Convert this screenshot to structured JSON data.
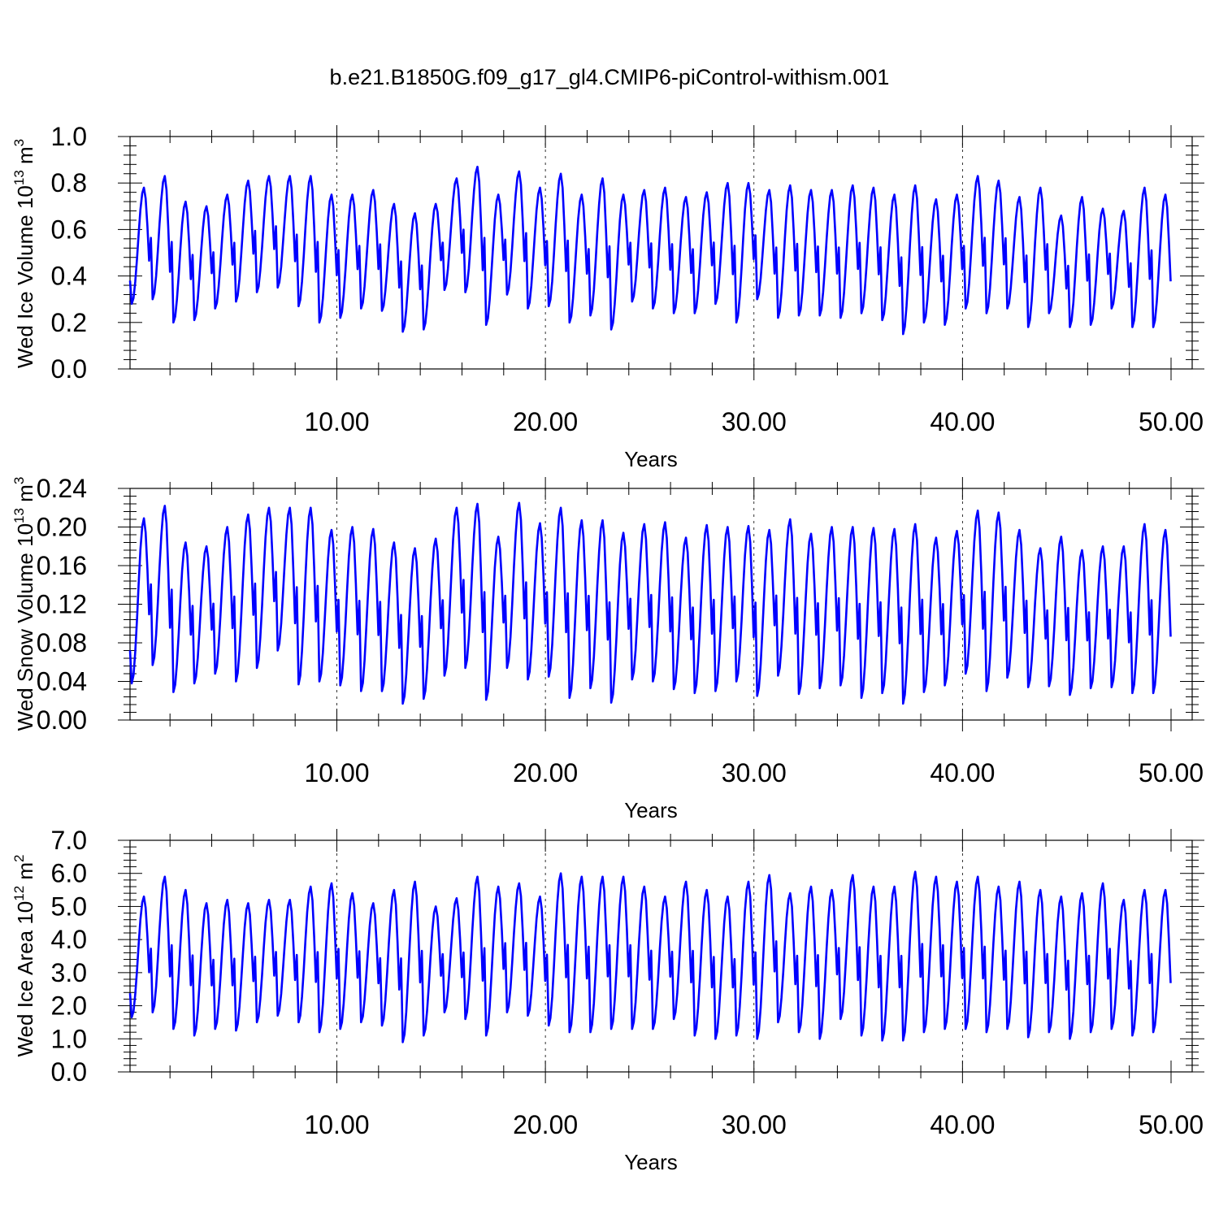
{
  "figure": {
    "title": "b.e21.B1850G.f09_g17_gl4.CMIP6-piControl-withism.001"
  },
  "chart_data": [
    {
      "type": "line",
      "ylabel": "Wed Ice Volume 10",
      "ylabel_exp": "13",
      "ylabel_unit": " m",
      "ylabel_unit_exp": "3",
      "xlabel": "Years",
      "xlim": [
        0.083,
        50
      ],
      "ylim": [
        0,
        1.0
      ],
      "x_ticks": [
        "10.00",
        "20.00",
        "30.00",
        "40.00",
        "50.00"
      ],
      "y_ticks": [
        "0.0",
        "0.2",
        "0.4",
        "0.6",
        "0.8",
        "1.0"
      ],
      "line_color": "#0000ff",
      "x_start": 0.083,
      "x_step": 0.0833,
      "annual_min": [
        0.28,
        0.3,
        0.2,
        0.21,
        0.26,
        0.29,
        0.33,
        0.35,
        0.27,
        0.2,
        0.22,
        0.26,
        0.25,
        0.16,
        0.17,
        0.34,
        0.33,
        0.19,
        0.32,
        0.26,
        0.27,
        0.2,
        0.23,
        0.17,
        0.29,
        0.26,
        0.24,
        0.24,
        0.28,
        0.2,
        0.3,
        0.22,
        0.23,
        0.23,
        0.22,
        0.24,
        0.21,
        0.15,
        0.2,
        0.19,
        0.26,
        0.24,
        0.26,
        0.18,
        0.24,
        0.18,
        0.19,
        0.26,
        0.18,
        0.18
      ],
      "annual_max": [
        0.78,
        0.83,
        0.72,
        0.7,
        0.75,
        0.81,
        0.83,
        0.83,
        0.83,
        0.75,
        0.75,
        0.77,
        0.71,
        0.67,
        0.71,
        0.82,
        0.87,
        0.75,
        0.85,
        0.78,
        0.84,
        0.75,
        0.82,
        0.75,
        0.77,
        0.78,
        0.74,
        0.76,
        0.8,
        0.8,
        0.77,
        0.79,
        0.77,
        0.77,
        0.79,
        0.78,
        0.75,
        0.79,
        0.73,
        0.75,
        0.83,
        0.81,
        0.74,
        0.78,
        0.66,
        0.74,
        0.69,
        0.68,
        0.78,
        0.75
      ]
    },
    {
      "type": "line",
      "ylabel": "Wed Snow Volume 10",
      "ylabel_exp": "13",
      "ylabel_unit": " m",
      "ylabel_unit_exp": "3",
      "xlabel": "Years",
      "xlim": [
        0.083,
        50
      ],
      "ylim": [
        0,
        0.24
      ],
      "x_ticks": [
        "10.00",
        "20.00",
        "30.00",
        "40.00",
        "50.00"
      ],
      "y_ticks": [
        "0.00",
        "0.04",
        "0.08",
        "0.12",
        "0.16",
        "0.20",
        "0.24"
      ],
      "line_color": "#0000ff",
      "x_start": 0.083,
      "x_step": 0.0833,
      "annual_min": [
        0.038,
        0.057,
        0.029,
        0.038,
        0.048,
        0.04,
        0.054,
        0.072,
        0.037,
        0.04,
        0.036,
        0.03,
        0.03,
        0.017,
        0.022,
        0.046,
        0.054,
        0.021,
        0.054,
        0.042,
        0.045,
        0.023,
        0.033,
        0.018,
        0.042,
        0.04,
        0.032,
        0.028,
        0.03,
        0.04,
        0.025,
        0.046,
        0.027,
        0.033,
        0.036,
        0.023,
        0.028,
        0.017,
        0.029,
        0.036,
        0.048,
        0.03,
        0.044,
        0.034,
        0.035,
        0.026,
        0.033,
        0.034,
        0.028,
        0.028
      ],
      "annual_max": [
        0.209,
        0.222,
        0.184,
        0.18,
        0.2,
        0.213,
        0.22,
        0.22,
        0.22,
        0.197,
        0.2,
        0.198,
        0.184,
        0.178,
        0.188,
        0.22,
        0.224,
        0.19,
        0.225,
        0.204,
        0.22,
        0.207,
        0.207,
        0.194,
        0.203,
        0.205,
        0.189,
        0.202,
        0.2,
        0.201,
        0.197,
        0.208,
        0.193,
        0.2,
        0.2,
        0.199,
        0.198,
        0.203,
        0.189,
        0.196,
        0.217,
        0.215,
        0.197,
        0.178,
        0.19,
        0.176,
        0.18,
        0.18,
        0.203,
        0.197
      ]
    },
    {
      "type": "line",
      "ylabel": "Wed Ice Area 10",
      "ylabel_exp": "12",
      "ylabel_unit": " m",
      "ylabel_unit_exp": "2",
      "xlabel": "Years",
      "xlim": [
        0.083,
        50
      ],
      "ylim": [
        0,
        7.0
      ],
      "x_ticks": [
        "10.00",
        "20.00",
        "30.00",
        "40.00",
        "50.00"
      ],
      "y_ticks": [
        "0.0",
        "1.0",
        "2.0",
        "3.0",
        "4.0",
        "5.0",
        "6.0",
        "7.0"
      ],
      "line_color": "#0000ff",
      "x_start": 0.083,
      "x_step": 0.0833,
      "annual_min": [
        1.65,
        1.8,
        1.3,
        1.1,
        1.3,
        1.25,
        1.5,
        1.7,
        1.5,
        1.2,
        1.3,
        1.5,
        1.4,
        0.9,
        1.1,
        1.8,
        1.6,
        1.1,
        1.8,
        1.7,
        1.4,
        1.2,
        1.2,
        1.3,
        1.3,
        1.3,
        1.6,
        1.1,
        1.0,
        1.1,
        1.0,
        1.5,
        1.2,
        1.0,
        1.6,
        1.1,
        0.95,
        0.95,
        1.2,
        1.3,
        1.3,
        1.2,
        1.3,
        1.05,
        1.2,
        1.0,
        1.2,
        1.3,
        1.1,
        1.2
      ],
      "annual_max": [
        5.3,
        5.9,
        5.5,
        5.1,
        5.2,
        5.1,
        5.2,
        5.2,
        5.6,
        5.7,
        5.4,
        5.1,
        5.5,
        5.75,
        5.0,
        5.25,
        5.9,
        5.6,
        5.7,
        5.3,
        6.0,
        5.9,
        5.9,
        5.9,
        5.6,
        5.3,
        5.75,
        5.5,
        5.3,
        5.75,
        5.95,
        5.4,
        5.6,
        5.5,
        5.95,
        5.6,
        5.6,
        6.05,
        5.9,
        5.75,
        5.9,
        5.6,
        5.75,
        5.5,
        5.3,
        5.4,
        5.7,
        5.2,
        5.5,
        5.5
      ]
    }
  ]
}
